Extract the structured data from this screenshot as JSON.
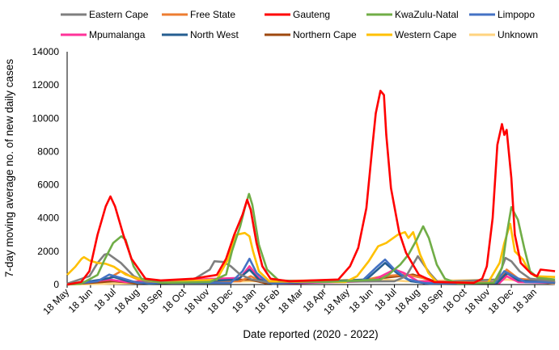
{
  "chart_data": {
    "type": "line",
    "title": "",
    "xlabel": "Date reported (2020 - 2022)",
    "ylabel": "7-day moving average no. of new daily cases",
    "x_unit": "months since 18 May 2020",
    "xlim": [
      0,
      20.87
    ],
    "ylim": [
      0,
      14000
    ],
    "yticks": [
      "0",
      "2000",
      "4000",
      "6000",
      "8000",
      "10000",
      "12000",
      "14000"
    ],
    "xticks": [
      "18 May",
      "18 Jun",
      "18 Jul",
      "18 Aug",
      "18 Sep",
      "18 Oct",
      "18 Nov",
      "18 Dec",
      "18 Jan",
      "18 Feb",
      "18 Mar",
      "18 Apr",
      "18 May",
      "18 Jun",
      "18 Jul",
      "18 Aug",
      "18 Sep",
      "18 Oct",
      "18 Nov",
      "18 Dec",
      "18 Jan"
    ],
    "grid": false,
    "legend_position": "top",
    "series": [
      {
        "name": "Eastern Cape",
        "color": "#7f7f7f",
        "points": [
          [
            0,
            50
          ],
          [
            0.95,
            500
          ],
          [
            1.3,
            1300
          ],
          [
            1.6,
            1800
          ],
          [
            1.75,
            1850
          ],
          [
            2.3,
            1300
          ],
          [
            2.85,
            500
          ],
          [
            3.4,
            150
          ],
          [
            5.4,
            300
          ],
          [
            6.1,
            900
          ],
          [
            6.3,
            1400
          ],
          [
            6.7,
            1350
          ],
          [
            7.0,
            1100
          ],
          [
            7.4,
            600
          ],
          [
            7.9,
            300
          ],
          [
            8.5,
            150
          ],
          [
            14.0,
            200
          ],
          [
            14.5,
            500
          ],
          [
            15.0,
            1700
          ],
          [
            15.5,
            700
          ],
          [
            15.85,
            150
          ],
          [
            18.4,
            300
          ],
          [
            18.75,
            1600
          ],
          [
            19.0,
            1400
          ],
          [
            19.35,
            800
          ],
          [
            19.8,
            350
          ],
          [
            20.87,
            200
          ]
        ]
      },
      {
        "name": "Free State",
        "color": "#ed7d31",
        "points": [
          [
            0,
            0
          ],
          [
            1.7,
            300
          ],
          [
            2.3,
            800
          ],
          [
            2.7,
            500
          ],
          [
            3.3,
            150
          ],
          [
            7.4,
            200
          ],
          [
            7.85,
            500
          ],
          [
            8.3,
            200
          ],
          [
            12.5,
            200
          ],
          [
            13.5,
            500
          ],
          [
            14.5,
            600
          ],
          [
            15.2,
            400
          ],
          [
            15.8,
            100
          ],
          [
            18.4,
            150
          ],
          [
            18.8,
            900
          ],
          [
            19.3,
            350
          ],
          [
            20.87,
            150
          ]
        ]
      },
      {
        "name": "Gauteng",
        "color": "#ff0000",
        "points": [
          [
            0,
            0
          ],
          [
            0.6,
            150
          ],
          [
            0.95,
            800
          ],
          [
            1.3,
            3000
          ],
          [
            1.65,
            4700
          ],
          [
            1.85,
            5300
          ],
          [
            2.05,
            4700
          ],
          [
            2.4,
            3000
          ],
          [
            2.75,
            1550
          ],
          [
            3.0,
            1050
          ],
          [
            3.35,
            350
          ],
          [
            4.0,
            250
          ],
          [
            5.4,
            350
          ],
          [
            6.4,
            580
          ],
          [
            6.8,
            1550
          ],
          [
            7.15,
            3000
          ],
          [
            7.5,
            4200
          ],
          [
            7.7,
            5100
          ],
          [
            7.85,
            4500
          ],
          [
            8.1,
            2500
          ],
          [
            8.35,
            1100
          ],
          [
            8.7,
            350
          ],
          [
            9.5,
            200
          ],
          [
            11.6,
            300
          ],
          [
            12.1,
            1100
          ],
          [
            12.45,
            2200
          ],
          [
            12.8,
            4600
          ],
          [
            13.05,
            8200
          ],
          [
            13.2,
            10300
          ],
          [
            13.4,
            11650
          ],
          [
            13.55,
            11400
          ],
          [
            13.65,
            9000
          ],
          [
            13.85,
            5800
          ],
          [
            14.2,
            3150
          ],
          [
            14.5,
            1900
          ],
          [
            15.05,
            580
          ],
          [
            15.7,
            150
          ],
          [
            17.4,
            100
          ],
          [
            17.75,
            350
          ],
          [
            17.95,
            1100
          ],
          [
            18.2,
            4000
          ],
          [
            18.4,
            8400
          ],
          [
            18.6,
            9650
          ],
          [
            18.7,
            9000
          ],
          [
            18.8,
            9300
          ],
          [
            19.0,
            6400
          ],
          [
            19.15,
            3000
          ],
          [
            19.4,
            1300
          ],
          [
            19.85,
            650
          ],
          [
            20.1,
            500
          ],
          [
            20.25,
            900
          ],
          [
            20.87,
            800
          ]
        ]
      },
      {
        "name": "KwaZulu-Natal",
        "color": "#70ad47",
        "points": [
          [
            0,
            0
          ],
          [
            0.6,
            50
          ],
          [
            1.3,
            580
          ],
          [
            1.62,
            1550
          ],
          [
            1.97,
            2500
          ],
          [
            2.32,
            2900
          ],
          [
            2.5,
            2700
          ],
          [
            2.84,
            1100
          ],
          [
            3.18,
            350
          ],
          [
            4.05,
            100
          ],
          [
            6.1,
            150
          ],
          [
            6.8,
            600
          ],
          [
            7.05,
            2000
          ],
          [
            7.4,
            3500
          ],
          [
            7.6,
            4600
          ],
          [
            7.78,
            5450
          ],
          [
            7.92,
            4800
          ],
          [
            8.2,
            2400
          ],
          [
            8.55,
            900
          ],
          [
            9.05,
            250
          ],
          [
            11,
            150
          ],
          [
            13.4,
            300
          ],
          [
            13.75,
            600
          ],
          [
            14.25,
            1200
          ],
          [
            14.6,
            1800
          ],
          [
            14.95,
            2700
          ],
          [
            15.23,
            3500
          ],
          [
            15.47,
            2800
          ],
          [
            15.81,
            1200
          ],
          [
            16.16,
            350
          ],
          [
            16.7,
            80
          ],
          [
            18.25,
            100
          ],
          [
            18.6,
            1000
          ],
          [
            18.8,
            3000
          ],
          [
            19.0,
            4650
          ],
          [
            19.28,
            3900
          ],
          [
            19.55,
            2200
          ],
          [
            19.8,
            800
          ],
          [
            20.14,
            400
          ],
          [
            20.87,
            300
          ]
        ]
      },
      {
        "name": "Limpopo",
        "color": "#4472c4",
        "points": [
          [
            0,
            0
          ],
          [
            1.3,
            200
          ],
          [
            1.8,
            600
          ],
          [
            2.3,
            400
          ],
          [
            3.0,
            100
          ],
          [
            7.0,
            100
          ],
          [
            7.5,
            800
          ],
          [
            7.8,
            1550
          ],
          [
            8.1,
            700
          ],
          [
            8.6,
            100
          ],
          [
            12.6,
            200
          ],
          [
            13.2,
            1000
          ],
          [
            13.6,
            1500
          ],
          [
            14.0,
            900
          ],
          [
            14.6,
            300
          ],
          [
            15.3,
            80
          ],
          [
            18.3,
            100
          ],
          [
            18.7,
            800
          ],
          [
            19.1,
            500
          ],
          [
            19.6,
            150
          ],
          [
            20.87,
            150
          ]
        ]
      },
      {
        "name": "Mpumalanga",
        "color": "#ff3399",
        "points": [
          [
            0,
            0
          ],
          [
            1.8,
            300
          ],
          [
            2.5,
            150
          ],
          [
            7.4,
            400
          ],
          [
            7.8,
            1100
          ],
          [
            8.2,
            400
          ],
          [
            8.8,
            50
          ],
          [
            13.0,
            200
          ],
          [
            14.0,
            900
          ],
          [
            14.4,
            700
          ],
          [
            15.0,
            200
          ],
          [
            18.5,
            100
          ],
          [
            18.8,
            500
          ],
          [
            19.3,
            150
          ],
          [
            20.87,
            100
          ]
        ]
      },
      {
        "name": "North West",
        "color": "#255e91",
        "points": [
          [
            0,
            0
          ],
          [
            1.5,
            300
          ],
          [
            2.0,
            450
          ],
          [
            2.6,
            200
          ],
          [
            3.5,
            50
          ],
          [
            7.3,
            300
          ],
          [
            7.8,
            900
          ],
          [
            8.2,
            300
          ],
          [
            8.8,
            50
          ],
          [
            12.8,
            300
          ],
          [
            13.6,
            1300
          ],
          [
            14.1,
            700
          ],
          [
            14.7,
            200
          ],
          [
            15.5,
            50
          ],
          [
            18.4,
            100
          ],
          [
            18.8,
            700
          ],
          [
            19.3,
            250
          ],
          [
            20.87,
            100
          ]
        ]
      },
      {
        "name": "Northern Cape",
        "color": "#9e480e",
        "points": [
          [
            0,
            0
          ],
          [
            2.0,
            200
          ],
          [
            3.0,
            80
          ],
          [
            7.8,
            300
          ],
          [
            8.5,
            80
          ],
          [
            12.0,
            200
          ],
          [
            13.5,
            400
          ],
          [
            14.8,
            600
          ],
          [
            15.5,
            300
          ],
          [
            16.0,
            50
          ],
          [
            18.5,
            100
          ],
          [
            18.85,
            700
          ],
          [
            19.3,
            300
          ],
          [
            20.87,
            100
          ]
        ]
      },
      {
        "name": "Western Cape",
        "color": "#ffc000",
        "points": [
          [
            0,
            580
          ],
          [
            0.35,
            1070
          ],
          [
            0.62,
            1550
          ],
          [
            0.72,
            1650
          ],
          [
            0.95,
            1450
          ],
          [
            1.3,
            1300
          ],
          [
            1.65,
            1250
          ],
          [
            2.0,
            1070
          ],
          [
            2.5,
            600
          ],
          [
            3.05,
            350
          ],
          [
            4.05,
            100
          ],
          [
            6.4,
            300
          ],
          [
            6.9,
            1550
          ],
          [
            7.1,
            2500
          ],
          [
            7.25,
            3000
          ],
          [
            7.6,
            3100
          ],
          [
            7.8,
            2900
          ],
          [
            7.95,
            2000
          ],
          [
            8.2,
            800
          ],
          [
            8.65,
            200
          ],
          [
            11.9,
            150
          ],
          [
            12.4,
            500
          ],
          [
            12.9,
            1400
          ],
          [
            13.3,
            2300
          ],
          [
            13.65,
            2500
          ],
          [
            14.15,
            3000
          ],
          [
            14.45,
            3150
          ],
          [
            14.6,
            2800
          ],
          [
            14.8,
            3150
          ],
          [
            15.1,
            1800
          ],
          [
            15.45,
            700
          ],
          [
            15.8,
            150
          ],
          [
            18.0,
            100
          ],
          [
            18.5,
            1300
          ],
          [
            18.7,
            2500
          ],
          [
            18.95,
            3650
          ],
          [
            19.15,
            2000
          ],
          [
            19.5,
            1500
          ],
          [
            19.75,
            800
          ],
          [
            20.0,
            500
          ],
          [
            20.87,
            450
          ]
        ]
      },
      {
        "name": "Unknown",
        "color": "#ffd37f",
        "points": [
          [
            0,
            0
          ],
          [
            7.8,
            200
          ],
          [
            13.5,
            300
          ],
          [
            14.5,
            200
          ],
          [
            18.8,
            300
          ],
          [
            20.87,
            50
          ]
        ]
      }
    ],
    "draw_order": [
      9,
      7,
      1,
      5,
      6,
      4,
      0,
      8,
      3,
      2
    ]
  }
}
